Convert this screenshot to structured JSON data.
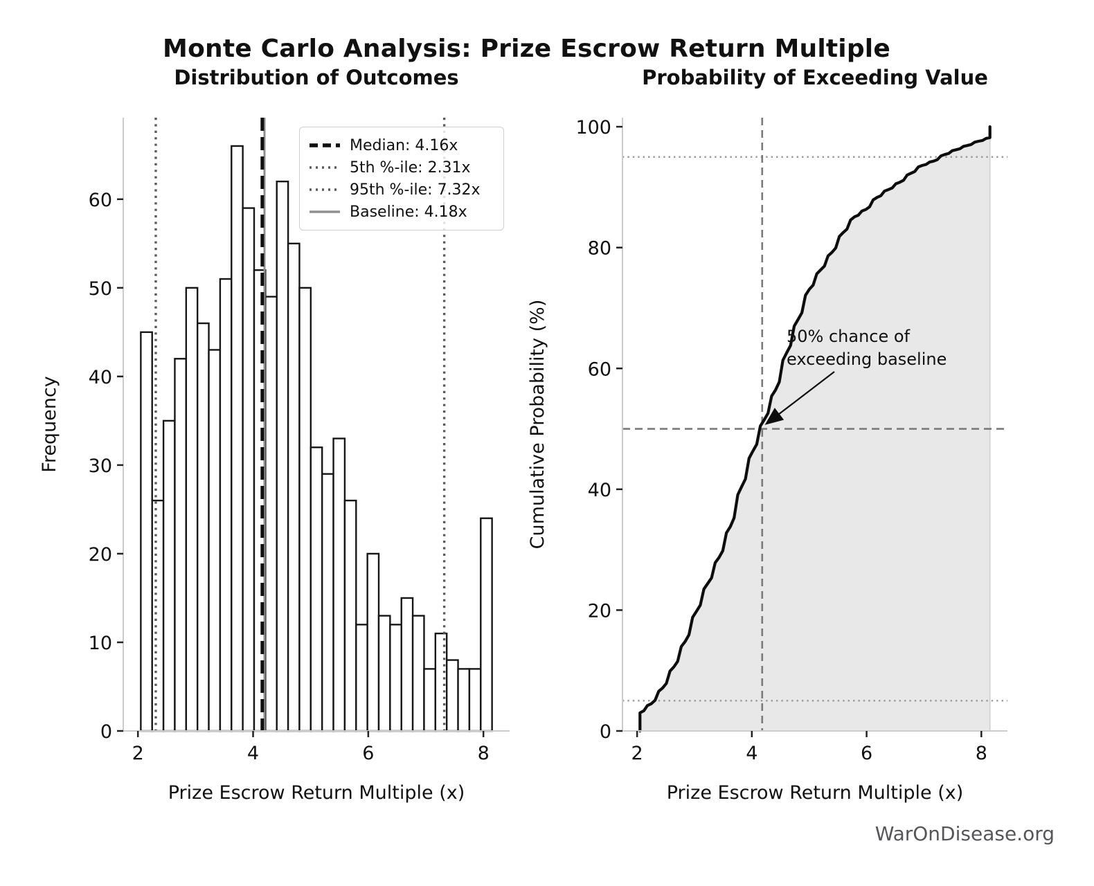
{
  "suptitle": "Monte Carlo Analysis: Prize Escrow Return Multiple",
  "footer": {
    "text": "WarOnDisease.org",
    "color": "#55565a"
  },
  "colors": {
    "background": "#ffffff",
    "bar_fill": "#ffffff",
    "bar_edge": "#161616",
    "median_line": "#0f0f0f",
    "percentile_line": "#5a5a5a",
    "baseline_line": "#8f8f8f",
    "curve": "#0d0d0d",
    "cdf_fill": "#e8e8e8",
    "cdf_fill_edge": "#cfcfcf",
    "guide_dashed": "#7a7a7a",
    "guide_dotted": "#999999",
    "spine": "#cccccc",
    "tick": "#222222",
    "text": "#111111"
  },
  "chart_data": [
    {
      "type": "histogram",
      "title": "Distribution of Outcomes",
      "xlabel": "Prize Escrow Return Multiple (x)",
      "ylabel": "Frequency",
      "bin_start": 2.05,
      "bin_end": 8.15,
      "bins": 31,
      "counts": [
        45,
        26,
        35,
        42,
        50,
        46,
        43,
        51,
        66,
        59,
        52,
        49,
        62,
        55,
        50,
        32,
        29,
        33,
        26,
        12,
        20,
        13,
        12,
        15,
        13,
        7,
        11,
        8,
        7,
        7,
        24
      ],
      "xticks": [
        2,
        4,
        6,
        8
      ],
      "yticks": [
        0,
        10,
        20,
        30,
        40,
        50,
        60
      ],
      "xlim": [
        1.745,
        8.455
      ],
      "ylim": [
        0,
        69.2
      ],
      "grid": false,
      "reference_lines": {
        "median": 4.16,
        "p5": 2.31,
        "p95": 7.32,
        "baseline": 4.18
      },
      "legend_position": "upper right",
      "legend": [
        {
          "label": "Median: 4.16x",
          "style": "dashed-black"
        },
        {
          "label": "5th %-ile: 2.31x",
          "style": "dotted-gray"
        },
        {
          "label": "95th %-ile: 7.32x",
          "style": "dotted-gray"
        },
        {
          "label": "Baseline: 4.18x",
          "style": "solid-gray"
        }
      ]
    },
    {
      "type": "line",
      "title": "Probability of Exceeding Value",
      "xlabel": "Prize Escrow Return Multiple (x)",
      "ylabel": "Cumulative Probability (%)",
      "x": [
        2.05,
        2.05,
        2.247,
        2.444,
        2.64,
        2.837,
        3.034,
        3.231,
        3.427,
        3.624,
        3.821,
        4.018,
        4.215,
        4.411,
        4.608,
        4.805,
        5.002,
        5.198,
        5.395,
        5.592,
        5.789,
        5.986,
        6.182,
        6.379,
        6.576,
        6.773,
        6.969,
        7.166,
        7.363,
        7.56,
        7.756,
        7.953,
        8.15,
        8.15
      ],
      "y": [
        0,
        3,
        4.5,
        7.1,
        10.6,
        14.8,
        19.8,
        24.4,
        28.7,
        33.8,
        40.4,
        46.3,
        51.5,
        56.4,
        62.6,
        68.1,
        73.1,
        76.3,
        79.2,
        82.5,
        85.1,
        86.3,
        88.3,
        89.6,
        90.8,
        92.3,
        93.6,
        94.3,
        95.4,
        96.2,
        96.9,
        97.6,
        98.2,
        100
      ],
      "fill_under": true,
      "xticks": [
        2,
        4,
        6,
        8
      ],
      "yticks": [
        0,
        20,
        40,
        60,
        80,
        100
      ],
      "xlim": [
        1.745,
        8.455
      ],
      "ylim": [
        0,
        101.5
      ],
      "grid": false,
      "hlines": [
        {
          "y": 50,
          "style": "dashed"
        },
        {
          "y": 5,
          "style": "dotted"
        },
        {
          "y": 95,
          "style": "dotted"
        }
      ],
      "vlines": [
        {
          "x": 4.18,
          "style": "dashed"
        }
      ],
      "annotation": {
        "line1": "50% chance of",
        "line2": "exceeding baseline",
        "arrow_points_to": [
          4.22,
          50.5
        ]
      }
    }
  ]
}
